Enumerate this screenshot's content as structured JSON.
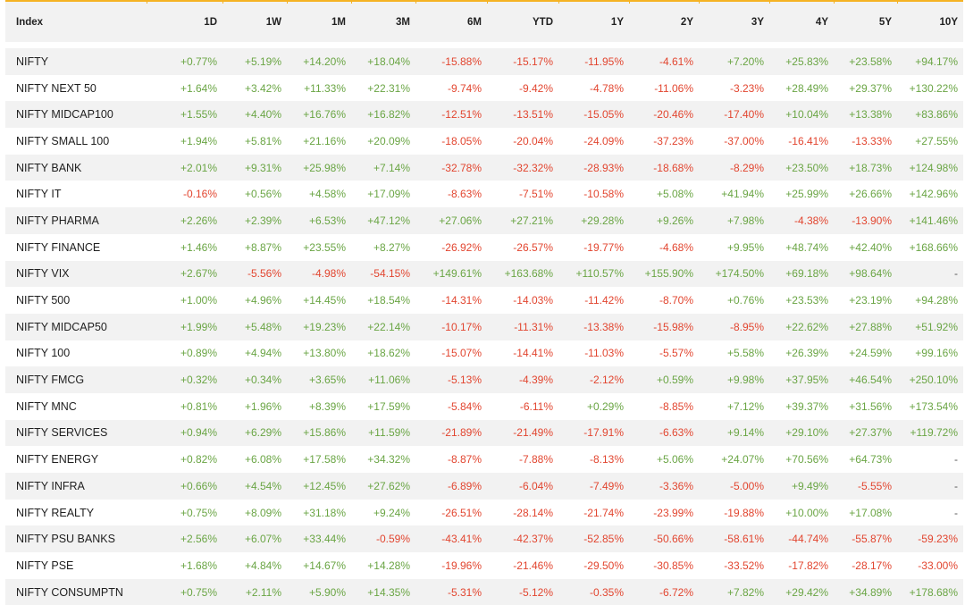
{
  "table": {
    "columns": [
      "Index",
      "1D",
      "1W",
      "1M",
      "3M",
      "6M",
      "YTD",
      "1Y",
      "2Y",
      "3Y",
      "4Y",
      "5Y",
      "10Y"
    ],
    "rows": [
      {
        "name": "NIFTY",
        "values": [
          "+0.77%",
          "+5.19%",
          "+14.20%",
          "+18.04%",
          "-15.88%",
          "-15.17%",
          "-11.95%",
          "-4.61%",
          "+7.20%",
          "+25.83%",
          "+23.58%",
          "+94.17%"
        ]
      },
      {
        "name": "NIFTY NEXT 50",
        "values": [
          "+1.64%",
          "+3.42%",
          "+11.33%",
          "+22.31%",
          "-9.74%",
          "-9.42%",
          "-4.78%",
          "-11.06%",
          "-3.23%",
          "+28.49%",
          "+29.37%",
          "+130.22%"
        ]
      },
      {
        "name": "NIFTY MIDCAP100",
        "values": [
          "+1.55%",
          "+4.40%",
          "+16.76%",
          "+16.82%",
          "-12.51%",
          "-13.51%",
          "-15.05%",
          "-20.46%",
          "-17.40%",
          "+10.04%",
          "+13.38%",
          "+83.86%"
        ]
      },
      {
        "name": "NIFTY SMALL 100",
        "values": [
          "+1.94%",
          "+5.81%",
          "+21.16%",
          "+20.09%",
          "-18.05%",
          "-20.04%",
          "-24.09%",
          "-37.23%",
          "-37.00%",
          "-16.41%",
          "-13.33%",
          "+27.55%"
        ]
      },
      {
        "name": "NIFTY BANK",
        "values": [
          "+2.01%",
          "+9.31%",
          "+25.98%",
          "+7.14%",
          "-32.78%",
          "-32.32%",
          "-28.93%",
          "-18.68%",
          "-8.29%",
          "+23.50%",
          "+18.73%",
          "+124.98%"
        ]
      },
      {
        "name": "NIFTY IT",
        "values": [
          "-0.16%",
          "+0.56%",
          "+4.58%",
          "+17.09%",
          "-8.63%",
          "-7.51%",
          "-10.58%",
          "+5.08%",
          "+41.94%",
          "+25.99%",
          "+26.66%",
          "+142.96%"
        ]
      },
      {
        "name": "NIFTY PHARMA",
        "values": [
          "+2.26%",
          "+2.39%",
          "+6.53%",
          "+47.12%",
          "+27.06%",
          "+27.21%",
          "+29.28%",
          "+9.26%",
          "+7.98%",
          "-4.38%",
          "-13.90%",
          "+141.46%"
        ]
      },
      {
        "name": "NIFTY FINANCE",
        "values": [
          "+1.46%",
          "+8.87%",
          "+23.55%",
          "+8.27%",
          "-26.92%",
          "-26.57%",
          "-19.77%",
          "-4.68%",
          "+9.95%",
          "+48.74%",
          "+42.40%",
          "+168.66%"
        ]
      },
      {
        "name": "NIFTY VIX",
        "values": [
          "+2.67%",
          "-5.56%",
          "-4.98%",
          "-54.15%",
          "+149.61%",
          "+163.68%",
          "+110.57%",
          "+155.90%",
          "+174.50%",
          "+69.18%",
          "+98.64%",
          "-"
        ]
      },
      {
        "name": "NIFTY 500",
        "values": [
          "+1.00%",
          "+4.96%",
          "+14.45%",
          "+18.54%",
          "-14.31%",
          "-14.03%",
          "-11.42%",
          "-8.70%",
          "+0.76%",
          "+23.53%",
          "+23.19%",
          "+94.28%"
        ]
      },
      {
        "name": "NIFTY MIDCAP50",
        "values": [
          "+1.99%",
          "+5.48%",
          "+19.23%",
          "+22.14%",
          "-10.17%",
          "-11.31%",
          "-13.38%",
          "-15.98%",
          "-8.95%",
          "+22.62%",
          "+27.88%",
          "+51.92%"
        ]
      },
      {
        "name": "NIFTY 100",
        "values": [
          "+0.89%",
          "+4.94%",
          "+13.80%",
          "+18.62%",
          "-15.07%",
          "-14.41%",
          "-11.03%",
          "-5.57%",
          "+5.58%",
          "+26.39%",
          "+24.59%",
          "+99.16%"
        ]
      },
      {
        "name": "NIFTY FMCG",
        "values": [
          "+0.32%",
          "+0.34%",
          "+3.65%",
          "+11.06%",
          "-5.13%",
          "-4.39%",
          "-2.12%",
          "+0.59%",
          "+9.98%",
          "+37.95%",
          "+46.54%",
          "+250.10%"
        ]
      },
      {
        "name": "NIFTY MNC",
        "values": [
          "+0.81%",
          "+1.96%",
          "+8.39%",
          "+17.59%",
          "-5.84%",
          "-6.11%",
          "+0.29%",
          "-8.85%",
          "+7.12%",
          "+39.37%",
          "+31.56%",
          "+173.54%"
        ]
      },
      {
        "name": "NIFTY SERVICES",
        "values": [
          "+0.94%",
          "+6.29%",
          "+15.86%",
          "+11.59%",
          "-21.89%",
          "-21.49%",
          "-17.91%",
          "-6.63%",
          "+9.14%",
          "+29.10%",
          "+27.37%",
          "+119.72%"
        ]
      },
      {
        "name": "NIFTY ENERGY",
        "values": [
          "+0.82%",
          "+6.08%",
          "+17.58%",
          "+34.32%",
          "-8.87%",
          "-7.88%",
          "-8.13%",
          "+5.06%",
          "+24.07%",
          "+70.56%",
          "+64.73%",
          "-"
        ]
      },
      {
        "name": "NIFTY INFRA",
        "values": [
          "+0.66%",
          "+4.54%",
          "+12.45%",
          "+27.62%",
          "-6.89%",
          "-6.04%",
          "-7.49%",
          "-3.36%",
          "-5.00%",
          "+9.49%",
          "-5.55%",
          "-"
        ]
      },
      {
        "name": "NIFTY REALTY",
        "values": [
          "+0.75%",
          "+8.09%",
          "+31.18%",
          "+9.24%",
          "-26.51%",
          "-28.14%",
          "-21.74%",
          "-23.99%",
          "-19.88%",
          "+10.00%",
          "+17.08%",
          "-"
        ]
      },
      {
        "name": "NIFTY PSU BANKS",
        "values": [
          "+2.56%",
          "+6.07%",
          "+33.44%",
          "-0.59%",
          "-43.41%",
          "-42.37%",
          "-52.85%",
          "-50.66%",
          "-58.61%",
          "-44.74%",
          "-55.87%",
          "-59.23%"
        ]
      },
      {
        "name": "NIFTY PSE",
        "values": [
          "+1.68%",
          "+4.84%",
          "+14.67%",
          "+14.28%",
          "-19.96%",
          "-21.46%",
          "-29.50%",
          "-30.85%",
          "-33.52%",
          "-17.82%",
          "-28.17%",
          "-33.00%"
        ]
      },
      {
        "name": "NIFTY CONSUMPTN",
        "values": [
          "+0.75%",
          "+2.11%",
          "+5.90%",
          "+14.35%",
          "-5.31%",
          "-5.12%",
          "-0.35%",
          "-6.72%",
          "+7.82%",
          "+29.42%",
          "+34.89%",
          "+178.68%"
        ]
      }
    ]
  },
  "colors": {
    "positive": "#6aa544",
    "negative": "#e2452f",
    "accent": "#f5b324",
    "header_bg": "#f2f2f2"
  }
}
